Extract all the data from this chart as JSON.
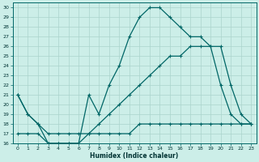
{
  "xlabel": "Humidex (Indice chaleur)",
  "bg_color": "#cceee8",
  "grid_color": "#aad4cc",
  "line_color": "#006666",
  "xlim": [
    -0.5,
    23.5
  ],
  "ylim": [
    16,
    30.5
  ],
  "xticks": [
    0,
    1,
    2,
    3,
    4,
    5,
    6,
    7,
    8,
    9,
    10,
    11,
    12,
    13,
    14,
    15,
    16,
    17,
    18,
    19,
    20,
    21,
    22,
    23
  ],
  "yticks": [
    16,
    17,
    18,
    19,
    20,
    21,
    22,
    23,
    24,
    25,
    26,
    27,
    28,
    29,
    30
  ],
  "line_peak_x": [
    0,
    1,
    2,
    3,
    4,
    5,
    6,
    7,
    8,
    9,
    10,
    11,
    12,
    13,
    14,
    15,
    16,
    17,
    18,
    19,
    20,
    21,
    22,
    23
  ],
  "line_peak_y": [
    21,
    19,
    18,
    16,
    16,
    16,
    16,
    21,
    19,
    22,
    24,
    27,
    29,
    30,
    30,
    29,
    28,
    27,
    27,
    26,
    22,
    19,
    18,
    18
  ],
  "line_diag_x": [
    0,
    1,
    2,
    3,
    4,
    5,
    6,
    7,
    8,
    9,
    10,
    11,
    12,
    13,
    14,
    15,
    16,
    17,
    18,
    19,
    20,
    21,
    22,
    23
  ],
  "line_diag_y": [
    21,
    19,
    18,
    17,
    17,
    17,
    17,
    17,
    18,
    19,
    20,
    21,
    22,
    23,
    24,
    25,
    25,
    26,
    26,
    26,
    26,
    22,
    19,
    18
  ],
  "line_flat_x": [
    0,
    1,
    2,
    3,
    4,
    5,
    6,
    7,
    8,
    9,
    10,
    11,
    12,
    13,
    14,
    15,
    16,
    17,
    18,
    19,
    20,
    21,
    22,
    23
  ],
  "line_flat_y": [
    17,
    17,
    17,
    16,
    16,
    16,
    16,
    17,
    17,
    17,
    17,
    17,
    18,
    18,
    18,
    18,
    18,
    18,
    18,
    18,
    18,
    18,
    18,
    18
  ]
}
